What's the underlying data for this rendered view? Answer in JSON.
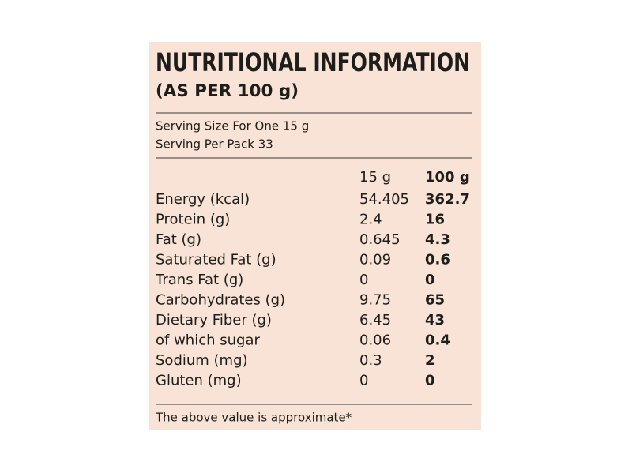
{
  "header": {
    "title": "NUTRITIONAL INFORMATION",
    "subtitle": "(AS PER 100 g)"
  },
  "serving": {
    "size": "Serving Size For One 15 g",
    "per_pack": "Serving Per Pack 33"
  },
  "table": {
    "columns": [
      "15 g",
      "100 g"
    ],
    "rows": [
      [
        "Energy (kcal)",
        "54.405",
        "362.7"
      ],
      [
        "Protein (g)",
        "2.4",
        "16"
      ],
      [
        "Fat (g)",
        "0.645",
        "4.3"
      ],
      [
        "Saturated Fat (g)",
        "0.09",
        "0.6"
      ],
      [
        "Trans Fat (g)",
        "0",
        "0"
      ],
      [
        "Carbohydrates (g)",
        "9.75",
        "65"
      ],
      [
        "Dietary Fiber (g)",
        "6.45",
        "43"
      ],
      [
        "of which sugar",
        "0.06",
        "0.4"
      ],
      [
        "Sodium (mg)",
        "0.3",
        "2"
      ],
      [
        "Gluten (mg)",
        "0",
        "0"
      ]
    ]
  },
  "footer": {
    "note": "The above value is approximate*"
  }
}
